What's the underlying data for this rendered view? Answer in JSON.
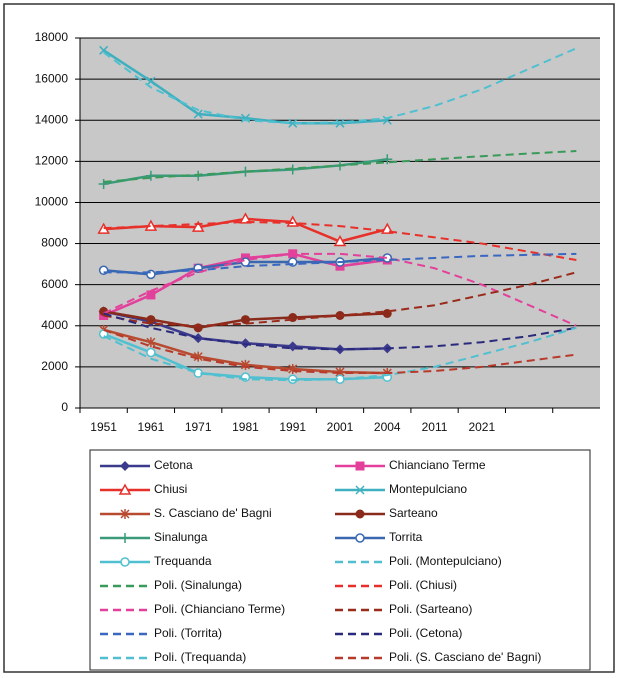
{
  "chart_data": {
    "type": "line",
    "categories": [
      "1951",
      "1961",
      "1971",
      "1981",
      "1991",
      "2001",
      "2004",
      "2011",
      "2021",
      null,
      null
    ],
    "ylim": [
      0,
      18000
    ],
    "yticks": [
      0,
      2000,
      4000,
      6000,
      8000,
      10000,
      12000,
      14000,
      16000,
      18000
    ],
    "grid": true,
    "series": [
      {
        "name": "Cetona",
        "color": "#3b3a8c",
        "marker": "diamond",
        "values": [
          4700,
          4200,
          3400,
          3150,
          3000,
          2850,
          2900,
          null,
          null,
          null,
          null
        ]
      },
      {
        "name": "Chianciano Terme",
        "color": "#e2409a",
        "marker": "square",
        "values": [
          4500,
          5500,
          6800,
          7300,
          7500,
          6900,
          7200,
          null,
          null,
          null,
          null
        ]
      },
      {
        "name": "Chiusi",
        "color": "#e8302a",
        "marker": "triangle",
        "values": [
          8700,
          8850,
          8800,
          9200,
          9050,
          8100,
          8700,
          null,
          null,
          null,
          null
        ]
      },
      {
        "name": "Montepulciano",
        "color": "#3fb0c0",
        "marker": "x",
        "values": [
          17400,
          15900,
          14300,
          14100,
          13850,
          13850,
          14000,
          null,
          null,
          null,
          null
        ]
      },
      {
        "name": "S. Casciano de' Bagni",
        "color": "#b84a30",
        "marker": "asterisk",
        "values": [
          3800,
          3200,
          2500,
          2100,
          1900,
          1750,
          1700,
          null,
          null,
          null,
          null
        ]
      },
      {
        "name": "Sarteano",
        "color": "#8a2a1a",
        "marker": "circle",
        "values": [
          4700,
          4300,
          3900,
          4300,
          4400,
          4500,
          4600,
          null,
          null,
          null,
          null
        ]
      },
      {
        "name": "Sinalunga",
        "color": "#3a9a7a",
        "marker": "plus",
        "values": [
          10900,
          11300,
          11300,
          11500,
          11600,
          11800,
          12100,
          null,
          null,
          null,
          null
        ]
      },
      {
        "name": "Torrita",
        "color": "#3a68b0",
        "marker": "open-circle",
        "values": [
          6700,
          6500,
          6800,
          7100,
          7100,
          7100,
          7300,
          null,
          null,
          null,
          null
        ]
      },
      {
        "name": "Trequanda",
        "color": "#50c0d0",
        "marker": "open-circle",
        "values": [
          3600,
          2700,
          1700,
          1500,
          1400,
          1400,
          1500,
          null,
          null,
          null,
          null
        ]
      },
      {
        "name": "Poli. (Montepulciano)",
        "color": "#50c0d0",
        "dashed": true,
        "values": [
          17300,
          15600,
          14500,
          14000,
          13850,
          13900,
          14100,
          14700,
          15500,
          16500,
          17500
        ]
      },
      {
        "name": "Poli. (Sinalunga)",
        "color": "#3a9a5a",
        "dashed": true,
        "values": [
          11000,
          11200,
          11350,
          11500,
          11650,
          11800,
          11950,
          12100,
          12250,
          12380,
          12500
        ]
      },
      {
        "name": "Poli. (Chiusi)",
        "color": "#e8302a",
        "dashed": true,
        "values": [
          8750,
          8850,
          8950,
          9050,
          9000,
          8850,
          8600,
          8300,
          8000,
          7600,
          7200
        ]
      },
      {
        "name": "Poli. (Chianciano Terme)",
        "color": "#e2409a",
        "dashed": true,
        "values": [
          4600,
          5700,
          6600,
          7200,
          7500,
          7500,
          7300,
          6800,
          6000,
          5000,
          4000
        ]
      },
      {
        "name": "Poli. (Sarteano)",
        "color": "#9a2a1a",
        "dashed": true,
        "values": [
          4500,
          4100,
          4000,
          4100,
          4300,
          4500,
          4700,
          5000,
          5500,
          6000,
          6600
        ]
      },
      {
        "name": "Poli. (Torrita)",
        "color": "#3a68c0",
        "dashed": true,
        "values": [
          6600,
          6600,
          6700,
          6900,
          7000,
          7100,
          7200,
          7300,
          7400,
          7450,
          7500
        ]
      },
      {
        "name": "Poli. (Cetona)",
        "color": "#2a2a7c",
        "dashed": true,
        "values": [
          4600,
          3900,
          3400,
          3100,
          2900,
          2850,
          2900,
          3000,
          3200,
          3500,
          3900
        ]
      },
      {
        "name": "Poli. (Trequanda)",
        "color": "#50c0d0",
        "dashed": true,
        "values": [
          3500,
          2400,
          1700,
          1400,
          1350,
          1400,
          1600,
          2000,
          2600,
          3200,
          3900
        ]
      },
      {
        "name": "Poli. (S. Casciano de' Bagni)",
        "color": "#b83a2a",
        "dashed": true,
        "values": [
          3800,
          3000,
          2400,
          2000,
          1800,
          1700,
          1700,
          1800,
          2000,
          2300,
          2600
        ]
      }
    ]
  }
}
